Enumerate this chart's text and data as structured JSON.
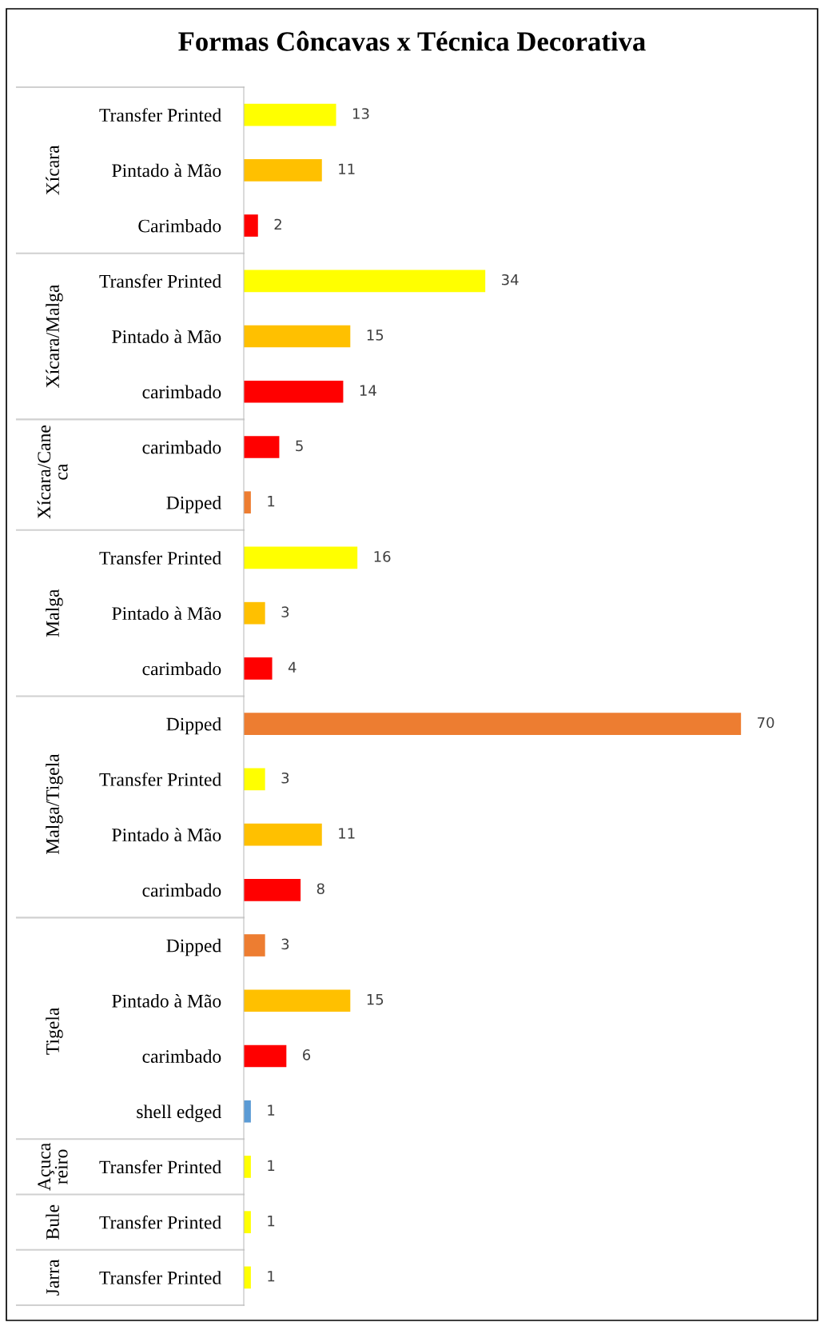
{
  "chart_data": {
    "type": "bar",
    "orientation": "horizontal",
    "title": "Formas Côncavas x Técnica Decorativa",
    "categories": [
      "Transfer Printed",
      "Pintado à Mão",
      "Carimbado",
      "Transfer Printed",
      "Pintado à Mão",
      "carimbado",
      "carimbado",
      "Dipped",
      "Transfer Printed",
      "Pintado à Mão",
      "carimbado",
      "Dipped",
      "Transfer Printed",
      "Pintado à Mão",
      "carimbado",
      "Dipped",
      "Pintado à Mão",
      "carimbado",
      "shell edged",
      "Transfer Printed",
      "Transfer Printed",
      "Transfer Printed"
    ],
    "y2_categories": [
      null,
      "Xícara",
      null,
      null,
      "Xícara/Malga",
      null,
      "Xícara/Cane\nca",
      null,
      null,
      "Malga",
      null,
      null,
      "Malga/Tigela",
      null,
      null,
      null,
      null,
      "Tigela",
      null,
      "Açuca\nreiro",
      "Bule",
      "Jarra"
    ],
    "values": [
      13,
      11,
      2,
      34,
      15,
      14,
      5,
      1,
      16,
      3,
      4,
      70,
      3,
      11,
      8,
      3,
      15,
      6,
      1,
      1,
      1,
      1
    ],
    "colors": [
      "#ffff00",
      "#ffc000",
      "#ff0000",
      "#ffff00",
      "#ffc000",
      "#ff0000",
      "#ff0000",
      "#ed7d31",
      "#ffff00",
      "#ffc000",
      "#ff0000",
      "#ed7d31",
      "#ffff00",
      "#ffc000",
      "#ff0000",
      "#ed7d31",
      "#ffc000",
      "#ff0000",
      "#5b9bd5",
      "#ffff00",
      "#ffff00",
      "#ffff00"
    ],
    "data_labels": true,
    "grid": false,
    "legend": false
  }
}
